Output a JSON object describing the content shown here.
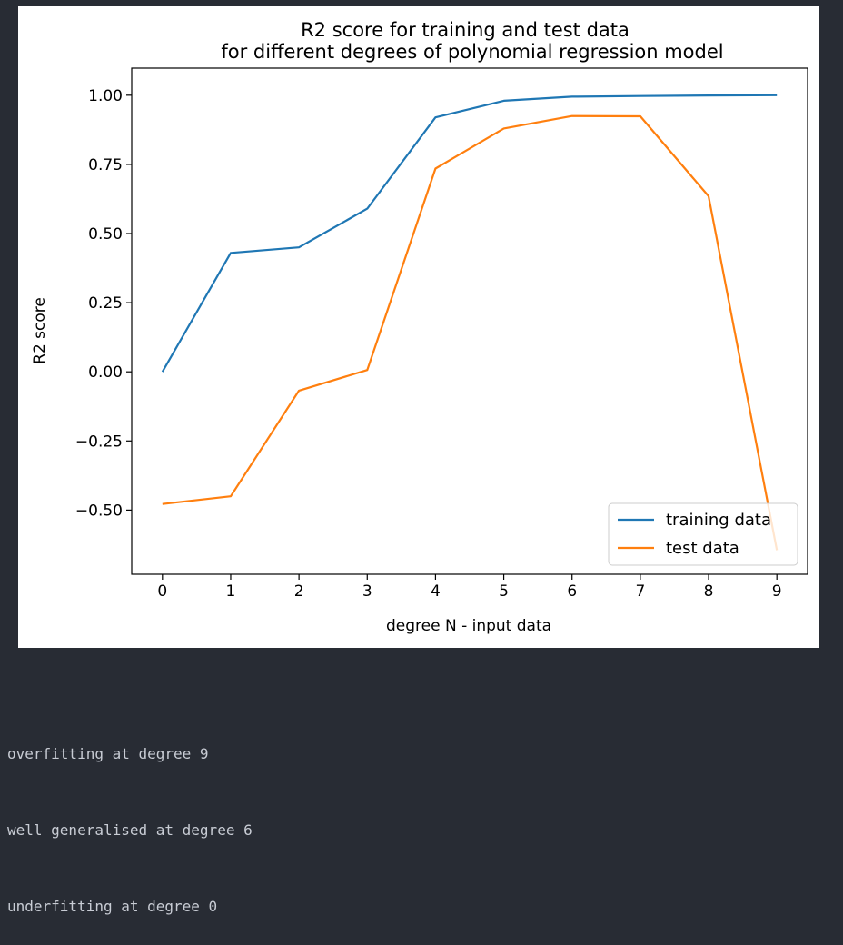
{
  "chart_data": {
    "type": "line",
    "title": [
      "R2 score for training and test data",
      "for different degrees of polynomial regression model"
    ],
    "xlabel": "degree N - input data",
    "ylabel": "R2 score",
    "x": [
      0,
      1,
      2,
      3,
      4,
      5,
      6,
      7,
      8,
      9
    ],
    "xticks": [
      "0",
      "1",
      "2",
      "3",
      "4",
      "5",
      "6",
      "7",
      "8",
      "9"
    ],
    "yticks": [
      1.0,
      0.75,
      0.5,
      0.25,
      0.0,
      -0.25,
      -0.5
    ],
    "ytick_labels": [
      "1.00",
      "0.75",
      "0.50",
      "0.25",
      "0.00",
      "−0.25",
      "−0.50"
    ],
    "xlim": [
      -0.45,
      9.45
    ],
    "ylim": [
      -0.732,
      1.098
    ],
    "grid": false,
    "legend_position": "lower-right",
    "series": [
      {
        "name": "training data",
        "color": "#1f77b4",
        "values": [
          0.0,
          0.43,
          0.45,
          0.59,
          0.92,
          0.98,
          0.995,
          0.997,
          0.999,
          1.0
        ]
      },
      {
        "name": "test data",
        "color": "#ff7f0e",
        "values": [
          -0.478,
          -0.45,
          -0.068,
          0.0067,
          0.735,
          0.88,
          0.925,
          0.924,
          0.635,
          -0.645
        ]
      }
    ]
  },
  "output": {
    "lines": [
      "overfitting at degree 9",
      "well generalised at degree 6",
      "underfitting at degree 0"
    ]
  }
}
